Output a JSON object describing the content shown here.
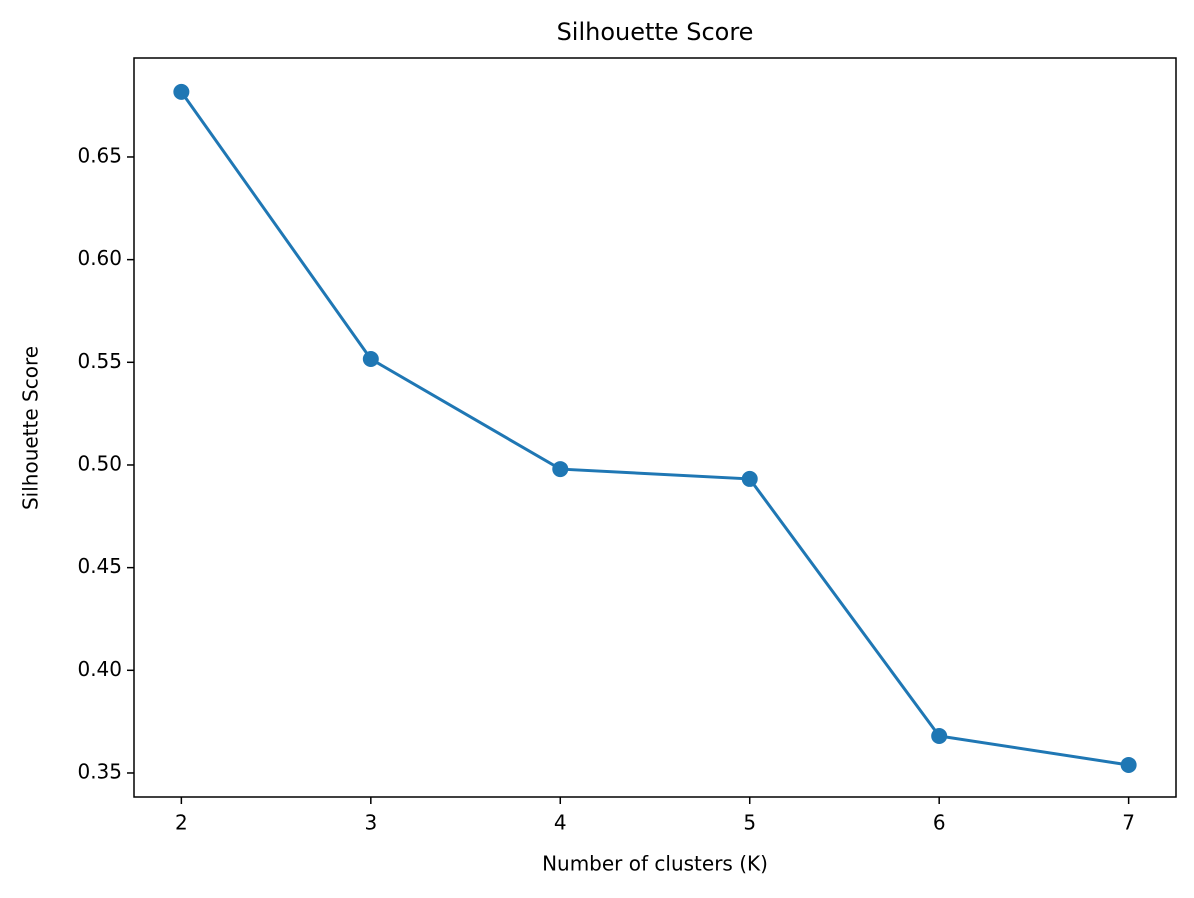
{
  "chart_data": {
    "type": "line",
    "title": "Silhouette Score",
    "x_label": "Number of clusters (K)",
    "y_label": "Silhouette Score",
    "x": [
      2,
      3,
      4,
      5,
      6,
      7
    ],
    "series": [
      {
        "name": "Silhouette Score",
        "color": "#1f77b4",
        "values": [
          0.6817,
          0.5516,
          0.498,
          0.4932,
          0.368,
          0.3539
        ]
      }
    ],
    "xlim": [
      1.75,
      7.25
    ],
    "xticks": [
      2,
      3,
      4,
      5,
      6,
      7
    ],
    "ylim": [
      0.3383,
      0.6982
    ],
    "yticks": [
      {
        "value": 0.35,
        "label": "0.35"
      },
      {
        "value": 0.4,
        "label": "0.40"
      },
      {
        "value": 0.45,
        "label": "0.45"
      },
      {
        "value": 0.5,
        "label": "0.50"
      },
      {
        "value": 0.55,
        "label": "0.55"
      },
      {
        "value": 0.6,
        "label": "0.60"
      },
      {
        "value": 0.65,
        "label": "0.65"
      }
    ],
    "grid": false,
    "markers": true
  }
}
